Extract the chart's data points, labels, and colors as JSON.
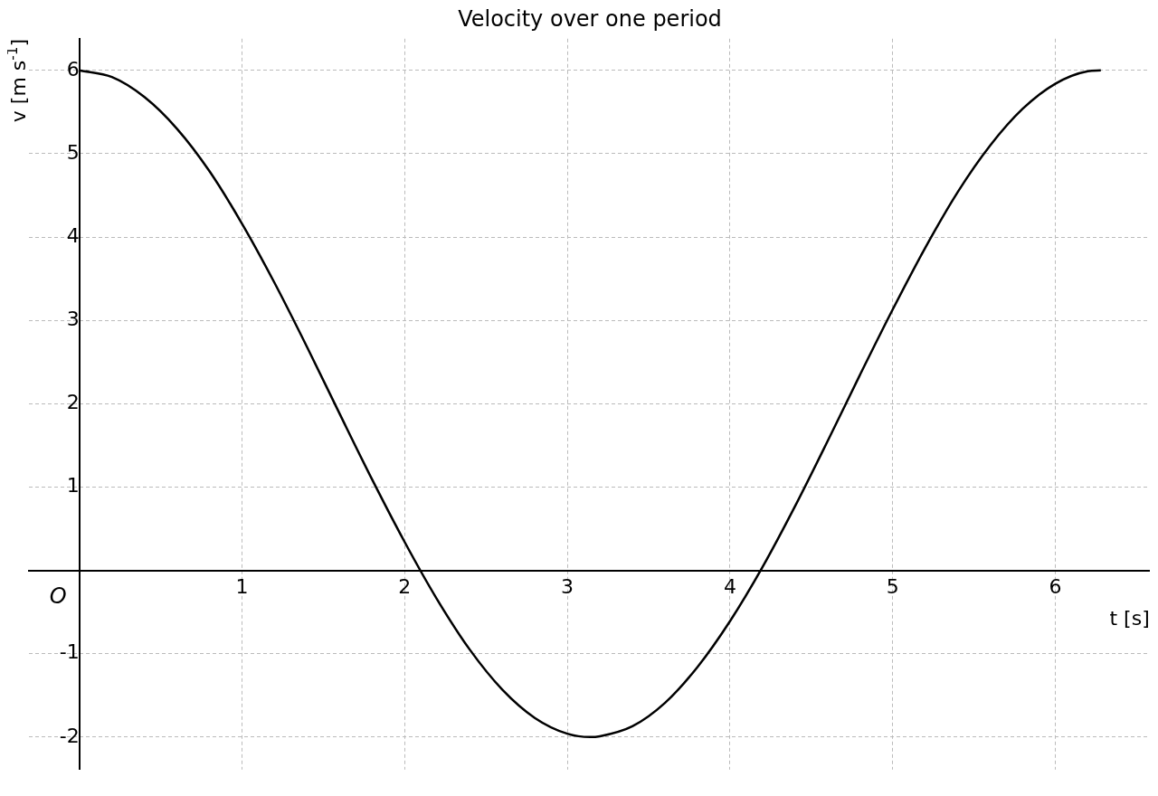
{
  "chart_data": {
    "type": "line",
    "title": "Velocity over one period",
    "xlabel": "t [s]",
    "ylabel": "v [m s$^{-1}$]",
    "annotations": [
      "O"
    ],
    "x": [
      0,
      0.2,
      0.4,
      0.6,
      0.8,
      1.0,
      1.2,
      1.4,
      1.6,
      1.8,
      2.0,
      2.2,
      2.4,
      2.6,
      2.8,
      3.0,
      3.14,
      3.2,
      3.4,
      3.6,
      3.8,
      4.0,
      4.2,
      4.4,
      4.6,
      4.8,
      5.0,
      5.2,
      5.4,
      5.6,
      5.8,
      6.0,
      6.2,
      6.28
    ],
    "series": [
      {
        "color": "#000000",
        "values": [
          6,
          5.92,
          5.68,
          5.3,
          4.79,
          4.16,
          3.45,
          2.68,
          1.88,
          1.09,
          0.34,
          -0.35,
          -0.95,
          -1.43,
          -1.77,
          -1.96,
          -2,
          -1.99,
          -1.87,
          -1.59,
          -1.16,
          -0.61,
          0.04,
          0.77,
          1.55,
          2.35,
          3.13,
          3.87,
          4.54,
          5.1,
          5.54,
          5.84,
          5.99,
          6
        ]
      }
    ],
    "xlim": [
      -0.31,
      6.58
    ],
    "ylim": [
      -2.39,
      6.38
    ],
    "xticks": [
      1,
      2,
      3,
      4,
      5,
      6
    ],
    "yticks": [
      -2,
      -1,
      1,
      2,
      3,
      4,
      5,
      6
    ],
    "grid": true,
    "legend": false,
    "marker": "none",
    "line_style": "solid"
  }
}
